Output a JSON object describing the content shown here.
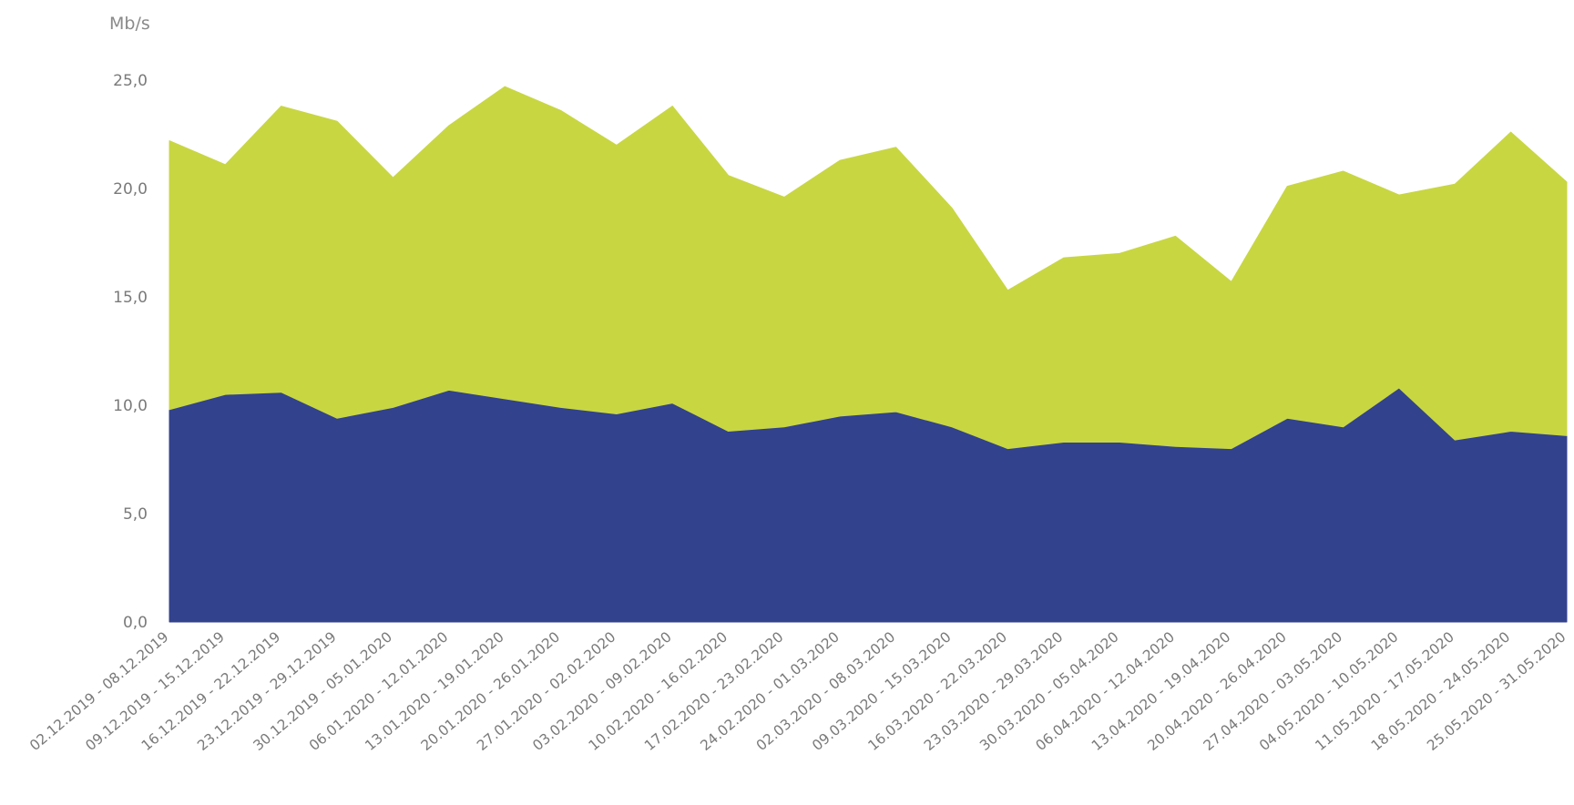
{
  "chart_data": {
    "type": "area",
    "stacked": true,
    "title": "",
    "xlabel": "",
    "ylabel": "Mb/s",
    "ylim": [
      0,
      25
    ],
    "yticks": [
      "0,0",
      "5,0",
      "10,0",
      "15,0",
      "20,0",
      "25,0"
    ],
    "grid": false,
    "legend": "none",
    "categories": [
      "02.12.2019 - 08.12.2019",
      "09.12.2019 - 15.12.2019",
      "16.12.2019 - 22.12.2019",
      "23.12.2019 - 29.12.2019",
      "30.12.2019 - 05.01.2020",
      "06.01.2020 - 12.01.2020",
      "13.01.2020 - 19.01.2020",
      "20.01.2020 - 26.01.2020",
      "27.01.2020 - 02.02.2020",
      "03.02.2020 - 09.02.2020",
      "10.02.2020 - 16.02.2020",
      "17.02.2020 - 23.02.2020",
      "24.02.2020 - 01.03.2020",
      "02.03.2020 - 08.03.2020",
      "09.03.2020 - 15.03.2020",
      "16.03.2020 - 22.03.2020",
      "23.03.2020 - 29.03.2020",
      "30.03.2020 - 05.04.2020",
      "06.04.2020 - 12.04.2020",
      "13.04.2020 - 19.04.2020",
      "20.04.2020 - 26.04.2020",
      "27.04.2020 - 03.05.2020",
      "04.05.2020 - 10.05.2020",
      "11.05.2020 - 17.05.2020",
      "18.05.2020 - 24.05.2020",
      "25.05.2020 - 31.05.2020"
    ],
    "series": [
      {
        "color": "#32428c",
        "values": [
          9.8,
          10.5,
          10.6,
          9.4,
          9.9,
          10.7,
          10.3,
          9.9,
          9.6,
          10.1,
          8.8,
          9.0,
          9.5,
          9.7,
          9.0,
          8.0,
          8.3,
          8.3,
          8.1,
          8.0,
          9.4,
          9.0,
          10.8,
          8.4,
          8.8,
          8.6
        ]
      },
      {
        "color": "#c8d642",
        "values": [
          12.4,
          10.6,
          13.2,
          13.7,
          10.6,
          12.2,
          14.4,
          13.7,
          12.4,
          13.7,
          11.8,
          10.6,
          11.8,
          12.2,
          10.1,
          7.3,
          8.5,
          8.7,
          9.7,
          7.7,
          10.7,
          11.8,
          8.9,
          11.8,
          13.8,
          11.7
        ]
      }
    ]
  }
}
